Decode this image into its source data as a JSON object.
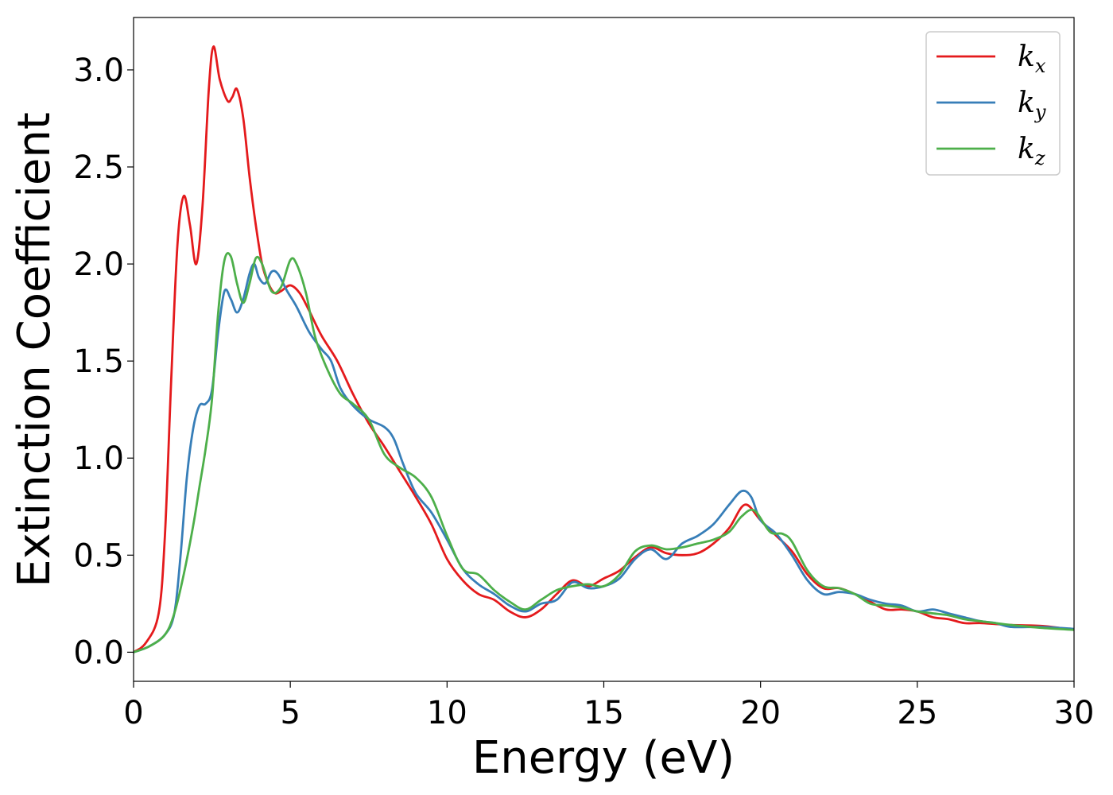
{
  "chart_data": {
    "type": "line",
    "title": "",
    "xlabel": "Energy (eV)",
    "ylabel": "Extinction Coefficient",
    "xlim": [
      0,
      30
    ],
    "ylim": [
      -0.15,
      3.27
    ],
    "xticks": [
      0,
      5,
      10,
      15,
      20,
      25,
      30
    ],
    "yticks": [
      0.0,
      0.5,
      1.0,
      1.5,
      2.0,
      2.5,
      3.0
    ],
    "xtick_labels": [
      "0",
      "5",
      "10",
      "15",
      "20",
      "25",
      "30"
    ],
    "ytick_labels": [
      "0.0",
      "0.5",
      "1.0",
      "1.5",
      "2.0",
      "2.5",
      "3.0"
    ],
    "grid": false,
    "legend": {
      "placement": "top-right",
      "entries": [
        {
          "base": "k",
          "sub": "x"
        },
        {
          "base": "k",
          "sub": "y"
        },
        {
          "base": "k",
          "sub": "z"
        }
      ]
    },
    "series": [
      {
        "name": "k_x",
        "color": "#e41a1c",
        "points": [
          [
            0,
            0
          ],
          [
            0.4,
            0.05
          ],
          [
            0.8,
            0.2
          ],
          [
            1.0,
            0.6
          ],
          [
            1.2,
            1.4
          ],
          [
            1.4,
            2.1
          ],
          [
            1.6,
            2.35
          ],
          [
            1.8,
            2.2
          ],
          [
            2.0,
            2.0
          ],
          [
            2.2,
            2.3
          ],
          [
            2.4,
            2.9
          ],
          [
            2.55,
            3.12
          ],
          [
            2.75,
            2.95
          ],
          [
            3.0,
            2.84
          ],
          [
            3.15,
            2.86
          ],
          [
            3.3,
            2.9
          ],
          [
            3.5,
            2.75
          ],
          [
            3.7,
            2.45
          ],
          [
            3.9,
            2.2
          ],
          [
            4.1,
            2.0
          ],
          [
            4.3,
            1.9
          ],
          [
            4.5,
            1.85
          ],
          [
            4.7,
            1.86
          ],
          [
            5.0,
            1.89
          ],
          [
            5.3,
            1.85
          ],
          [
            5.6,
            1.76
          ],
          [
            6.0,
            1.63
          ],
          [
            6.5,
            1.5
          ],
          [
            7.0,
            1.33
          ],
          [
            7.5,
            1.18
          ],
          [
            8.0,
            1.06
          ],
          [
            8.5,
            0.93
          ],
          [
            9.0,
            0.8
          ],
          [
            9.5,
            0.66
          ],
          [
            10.0,
            0.48
          ],
          [
            10.5,
            0.37
          ],
          [
            11.0,
            0.3
          ],
          [
            11.5,
            0.27
          ],
          [
            12.0,
            0.21
          ],
          [
            12.5,
            0.18
          ],
          [
            13.0,
            0.22
          ],
          [
            13.5,
            0.3
          ],
          [
            14.0,
            0.37
          ],
          [
            14.5,
            0.34
          ],
          [
            15.0,
            0.38
          ],
          [
            15.5,
            0.42
          ],
          [
            16.0,
            0.49
          ],
          [
            16.5,
            0.54
          ],
          [
            17.0,
            0.51
          ],
          [
            17.5,
            0.5
          ],
          [
            18.0,
            0.51
          ],
          [
            18.5,
            0.56
          ],
          [
            19.0,
            0.64
          ],
          [
            19.5,
            0.76
          ],
          [
            20.0,
            0.68
          ],
          [
            20.5,
            0.6
          ],
          [
            21.0,
            0.52
          ],
          [
            21.5,
            0.4
          ],
          [
            22.0,
            0.33
          ],
          [
            22.5,
            0.33
          ],
          [
            23.0,
            0.3
          ],
          [
            23.5,
            0.26
          ],
          [
            24.0,
            0.22
          ],
          [
            24.5,
            0.22
          ],
          [
            25.0,
            0.21
          ],
          [
            25.5,
            0.18
          ],
          [
            26.0,
            0.17
          ],
          [
            26.5,
            0.15
          ],
          [
            27.0,
            0.15
          ],
          [
            27.5,
            0.145
          ],
          [
            28.0,
            0.14
          ],
          [
            29.0,
            0.135
          ],
          [
            30.0,
            0.115
          ]
        ]
      },
      {
        "name": "k_y",
        "color": "#377eb8",
        "points": [
          [
            0,
            0
          ],
          [
            0.5,
            0.03
          ],
          [
            1.0,
            0.09
          ],
          [
            1.3,
            0.2
          ],
          [
            1.5,
            0.5
          ],
          [
            1.7,
            0.9
          ],
          [
            1.9,
            1.15
          ],
          [
            2.1,
            1.27
          ],
          [
            2.3,
            1.28
          ],
          [
            2.5,
            1.35
          ],
          [
            2.7,
            1.65
          ],
          [
            2.9,
            1.86
          ],
          [
            3.1,
            1.82
          ],
          [
            3.3,
            1.75
          ],
          [
            3.5,
            1.82
          ],
          [
            3.7,
            1.95
          ],
          [
            3.85,
            2.0
          ],
          [
            4.0,
            1.93
          ],
          [
            4.2,
            1.9
          ],
          [
            4.4,
            1.96
          ],
          [
            4.6,
            1.95
          ],
          [
            4.9,
            1.86
          ],
          [
            5.2,
            1.78
          ],
          [
            5.6,
            1.65
          ],
          [
            6.0,
            1.56
          ],
          [
            6.3,
            1.5
          ],
          [
            6.6,
            1.36
          ],
          [
            7.0,
            1.27
          ],
          [
            7.5,
            1.2
          ],
          [
            8.0,
            1.16
          ],
          [
            8.3,
            1.1
          ],
          [
            8.6,
            0.97
          ],
          [
            9.0,
            0.82
          ],
          [
            9.5,
            0.72
          ],
          [
            10.0,
            0.58
          ],
          [
            10.5,
            0.43
          ],
          [
            11.0,
            0.35
          ],
          [
            11.5,
            0.3
          ],
          [
            12.0,
            0.24
          ],
          [
            12.5,
            0.21
          ],
          [
            13.0,
            0.25
          ],
          [
            13.5,
            0.27
          ],
          [
            14.0,
            0.36
          ],
          [
            14.5,
            0.33
          ],
          [
            15.0,
            0.34
          ],
          [
            15.5,
            0.38
          ],
          [
            16.0,
            0.48
          ],
          [
            16.5,
            0.53
          ],
          [
            17.0,
            0.48
          ],
          [
            17.5,
            0.56
          ],
          [
            18.0,
            0.6
          ],
          [
            18.5,
            0.66
          ],
          [
            19.0,
            0.76
          ],
          [
            19.4,
            0.83
          ],
          [
            19.7,
            0.8
          ],
          [
            20.0,
            0.68
          ],
          [
            20.5,
            0.61
          ],
          [
            21.0,
            0.5
          ],
          [
            21.5,
            0.37
          ],
          [
            22.0,
            0.3
          ],
          [
            22.5,
            0.31
          ],
          [
            23.0,
            0.3
          ],
          [
            23.5,
            0.27
          ],
          [
            24.0,
            0.25
          ],
          [
            24.5,
            0.24
          ],
          [
            25.0,
            0.21
          ],
          [
            25.5,
            0.22
          ],
          [
            26.0,
            0.2
          ],
          [
            26.5,
            0.18
          ],
          [
            27.0,
            0.16
          ],
          [
            27.5,
            0.15
          ],
          [
            28.0,
            0.13
          ],
          [
            29.0,
            0.13
          ],
          [
            30.0,
            0.12
          ]
        ]
      },
      {
        "name": "k_z",
        "color": "#4daf4a",
        "points": [
          [
            0,
            0
          ],
          [
            0.5,
            0.03
          ],
          [
            1.0,
            0.09
          ],
          [
            1.3,
            0.2
          ],
          [
            1.6,
            0.4
          ],
          [
            1.9,
            0.65
          ],
          [
            2.1,
            0.85
          ],
          [
            2.3,
            1.05
          ],
          [
            2.5,
            1.3
          ],
          [
            2.7,
            1.75
          ],
          [
            2.9,
            2.02
          ],
          [
            3.1,
            2.04
          ],
          [
            3.3,
            1.9
          ],
          [
            3.5,
            1.8
          ],
          [
            3.7,
            1.9
          ],
          [
            3.9,
            2.03
          ],
          [
            4.1,
            2.0
          ],
          [
            4.4,
            1.86
          ],
          [
            4.7,
            1.88
          ],
          [
            5.0,
            2.02
          ],
          [
            5.2,
            2.0
          ],
          [
            5.5,
            1.85
          ],
          [
            5.8,
            1.62
          ],
          [
            6.2,
            1.45
          ],
          [
            6.6,
            1.33
          ],
          [
            7.0,
            1.28
          ],
          [
            7.5,
            1.2
          ],
          [
            8.0,
            1.02
          ],
          [
            8.5,
            0.95
          ],
          [
            9.0,
            0.9
          ],
          [
            9.5,
            0.8
          ],
          [
            10.0,
            0.6
          ],
          [
            10.5,
            0.43
          ],
          [
            11.0,
            0.4
          ],
          [
            11.5,
            0.32
          ],
          [
            12.0,
            0.26
          ],
          [
            12.5,
            0.22
          ],
          [
            13.0,
            0.27
          ],
          [
            13.5,
            0.32
          ],
          [
            14.0,
            0.34
          ],
          [
            14.5,
            0.35
          ],
          [
            15.0,
            0.34
          ],
          [
            15.5,
            0.4
          ],
          [
            16.0,
            0.52
          ],
          [
            16.5,
            0.55
          ],
          [
            17.0,
            0.53
          ],
          [
            17.5,
            0.54
          ],
          [
            18.0,
            0.56
          ],
          [
            18.5,
            0.58
          ],
          [
            19.0,
            0.62
          ],
          [
            19.4,
            0.7
          ],
          [
            19.8,
            0.73
          ],
          [
            20.3,
            0.62
          ],
          [
            20.7,
            0.61
          ],
          [
            21.0,
            0.57
          ],
          [
            21.5,
            0.42
          ],
          [
            22.0,
            0.34
          ],
          [
            22.5,
            0.33
          ],
          [
            23.0,
            0.3
          ],
          [
            23.5,
            0.25
          ],
          [
            24.0,
            0.24
          ],
          [
            24.5,
            0.23
          ],
          [
            25.0,
            0.21
          ],
          [
            25.5,
            0.2
          ],
          [
            26.0,
            0.19
          ],
          [
            26.5,
            0.17
          ],
          [
            27.0,
            0.16
          ],
          [
            27.5,
            0.15
          ],
          [
            28.0,
            0.14
          ],
          [
            29.0,
            0.125
          ],
          [
            30.0,
            0.115
          ]
        ]
      }
    ]
  }
}
